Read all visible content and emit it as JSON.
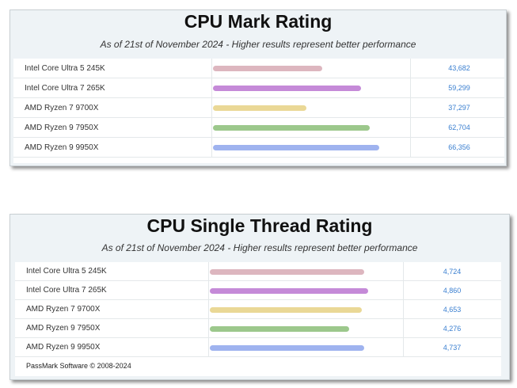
{
  "chart_data": [
    {
      "type": "bar",
      "orientation": "horizontal",
      "title": "CPU Mark Rating",
      "subtitle": "As of 21st of November 2024 - Higher results represent better performance",
      "categories": [
        "Intel Core Ultra 5 245K",
        "Intel Core Ultra 7 265K",
        "AMD Ryzen 7 9700X",
        "AMD Ryzen 9 7950X",
        "AMD Ryzen 9 9950X"
      ],
      "values": [
        43682,
        59299,
        37297,
        62704,
        66356
      ],
      "value_labels": [
        "43,682",
        "59,299",
        "37,297",
        "62,704",
        "66,356"
      ],
      "colors": [
        "#ddb6bf",
        "#c58ad8",
        "#ead896",
        "#9cc88c",
        "#9fb3ef"
      ],
      "xlim": [
        0,
        76000
      ],
      "grid": false,
      "legend": "none"
    },
    {
      "type": "bar",
      "orientation": "horizontal",
      "title": "CPU Single Thread Rating",
      "subtitle": "As of 21st of November 2024 - Higher results represent better performance",
      "categories": [
        "Intel Core Ultra 5 245K",
        "Intel Core Ultra 7 265K",
        "AMD Ryzen 7 9700X",
        "AMD Ryzen 9 7950X",
        "AMD Ryzen 9 9950X"
      ],
      "values": [
        4724,
        4860,
        4653,
        4276,
        4737
      ],
      "value_labels": [
        "4,724",
        "4,860",
        "4,653",
        "4,276",
        "4,737"
      ],
      "colors": [
        "#ddb6bf",
        "#c58ad8",
        "#ead896",
        "#9cc88c",
        "#9fb3ef"
      ],
      "xlim": [
        0,
        5340
      ],
      "grid": false,
      "legend": "none",
      "footer": "PassMark Software © 2008-2024"
    }
  ]
}
